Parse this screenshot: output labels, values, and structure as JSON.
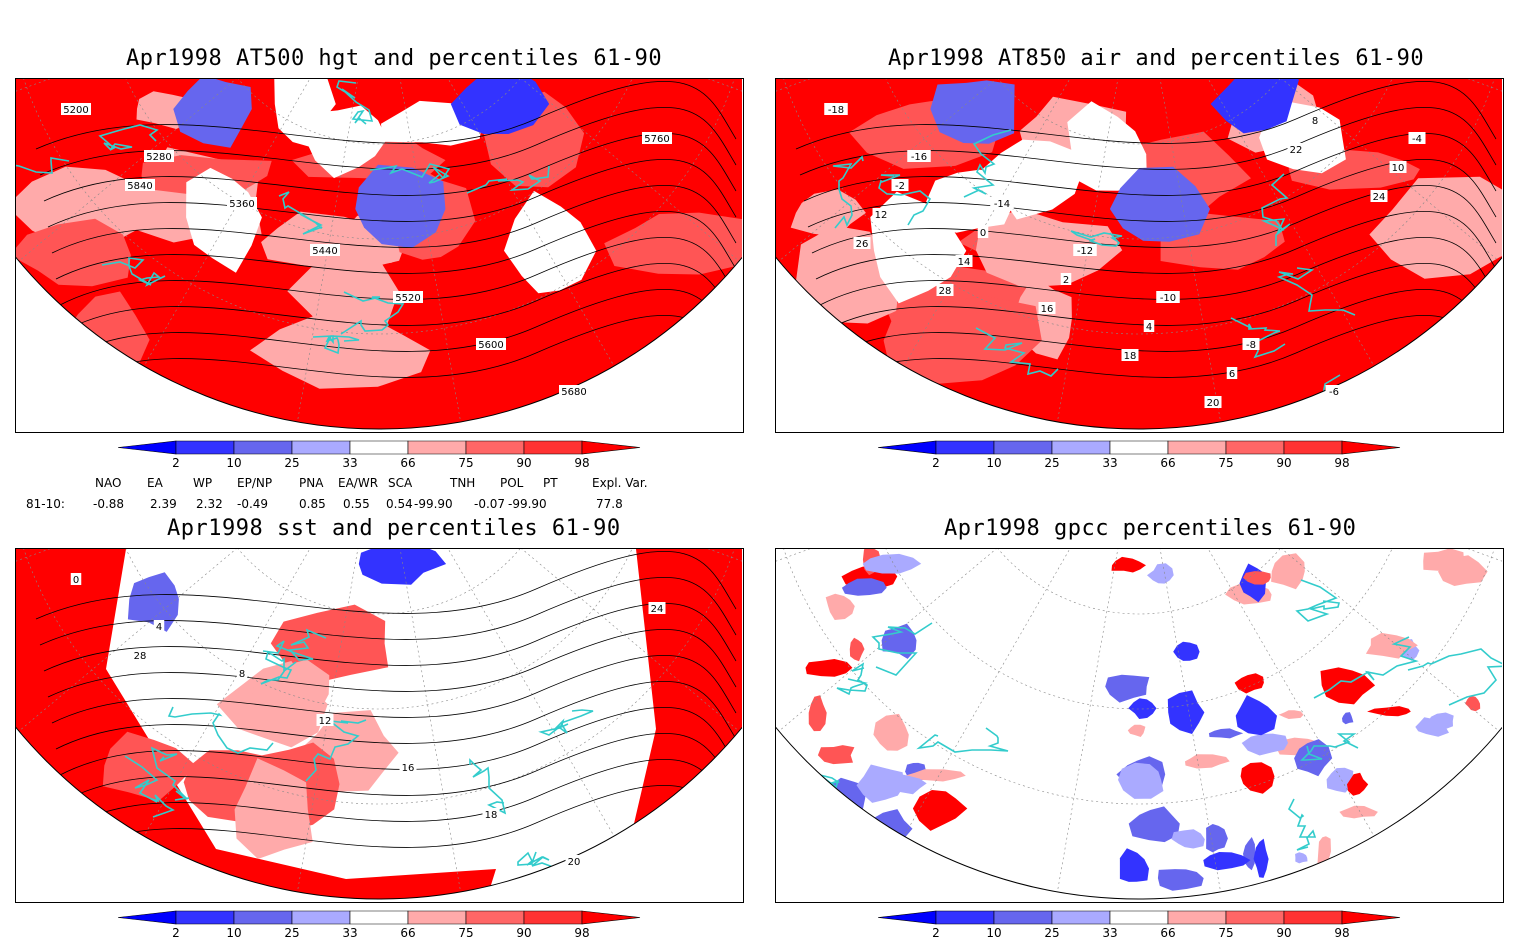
{
  "panels": [
    {
      "id": "at500",
      "title": "Apr1998 AT500 hgt and percentiles 61-90",
      "contour_labels": [
        "5200",
        "5280",
        "5360",
        "5440",
        "5520",
        "5600",
        "5680",
        "5760",
        "5840"
      ]
    },
    {
      "id": "at850",
      "title": "Apr1998 AT850 air and percentiles 61-90",
      "contour_labels": [
        "-18",
        "-16",
        "-14",
        "-12",
        "-10",
        "-8",
        "-6",
        "-4",
        "-2",
        "0",
        "2",
        "4",
        "6",
        "8",
        "10",
        "12",
        "14",
        "16",
        "18",
        "20",
        "22",
        "24",
        "26",
        "28"
      ]
    },
    {
      "id": "sst",
      "title": "Apr1998 sst and percentiles 61-90",
      "contour_labels": [
        "0",
        "4",
        "8",
        "12",
        "16",
        "18",
        "20",
        "24",
        "28"
      ]
    },
    {
      "id": "gpcc",
      "title": "Apr1998 gpcc percentiles 61-90",
      "contour_labels": []
    }
  ],
  "colorbar": {
    "labels": [
      "2",
      "10",
      "25",
      "33",
      "66",
      "75",
      "90",
      "98"
    ],
    "colors": [
      "#0000ff",
      "#3333ff",
      "#6666ee",
      "#aaaaff",
      "#ffffff",
      "#ffaaaa",
      "#ff6666",
      "#ff3333",
      "#ff0000"
    ]
  },
  "indices": {
    "headers": [
      "NAO",
      "EA",
      "WP",
      "EP/NP",
      "PNA",
      "EA/WR",
      "SCA",
      "TNH",
      "POL",
      "PT",
      "Expl. Var."
    ],
    "row_label": "81-10:",
    "values": [
      "-0.88",
      "2.39",
      "2.32",
      "-0.49",
      "0.85",
      "0.55",
      "0.54",
      "-99.90",
      "-0.07",
      "-99.90",
      "77.8"
    ]
  },
  "map_colors": {
    "warm": "#ff0000",
    "warm2": "#ff5555",
    "warm3": "#ffaaaa",
    "cold": "#3333ff",
    "cold2": "#6666ee",
    "cold3": "#aaaaff",
    "coast": "#33cccc",
    "contour": "#000000"
  }
}
